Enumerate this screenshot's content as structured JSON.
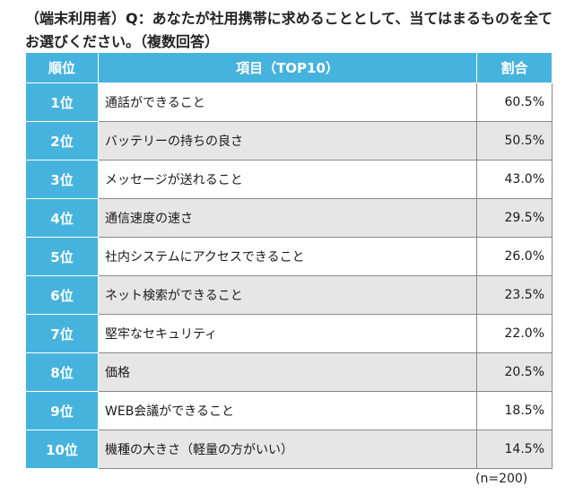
{
  "question": "（端末利用者）Q：あなたが社用携帯に求めることとして、当てはまるものを全てお選びください。（複数回答）",
  "table": {
    "headers": [
      "順位",
      "項目（TOP10）",
      "割合"
    ],
    "rows": [
      {
        "rank": "1位",
        "item": "通話ができること",
        "pct": "60.5%"
      },
      {
        "rank": "2位",
        "item": "バッテリーの持ちの良さ",
        "pct": "50.5%"
      },
      {
        "rank": "3位",
        "item": "メッセージが送れること",
        "pct": "43.0%"
      },
      {
        "rank": "4位",
        "item": "通信速度の速さ",
        "pct": "29.5%"
      },
      {
        "rank": "5位",
        "item": "社内システムにアクセスできること",
        "pct": "26.0%"
      },
      {
        "rank": "6位",
        "item": "ネット検索ができること",
        "pct": "23.5%"
      },
      {
        "rank": "7位",
        "item": "堅牢なセキュリティ",
        "pct": "22.0%"
      },
      {
        "rank": "8位",
        "item": "価格",
        "pct": "20.5%"
      },
      {
        "rank": "9位",
        "item": "WEB会議ができること",
        "pct": "18.5%"
      },
      {
        "rank": "10位",
        "item": "機種の大きさ（軽量の方がいい）",
        "pct": "14.5%"
      }
    ]
  },
  "note": "(n=200)",
  "colors": {
    "header_bg": "#46b3de",
    "alt_row": "#e6e6e6"
  }
}
